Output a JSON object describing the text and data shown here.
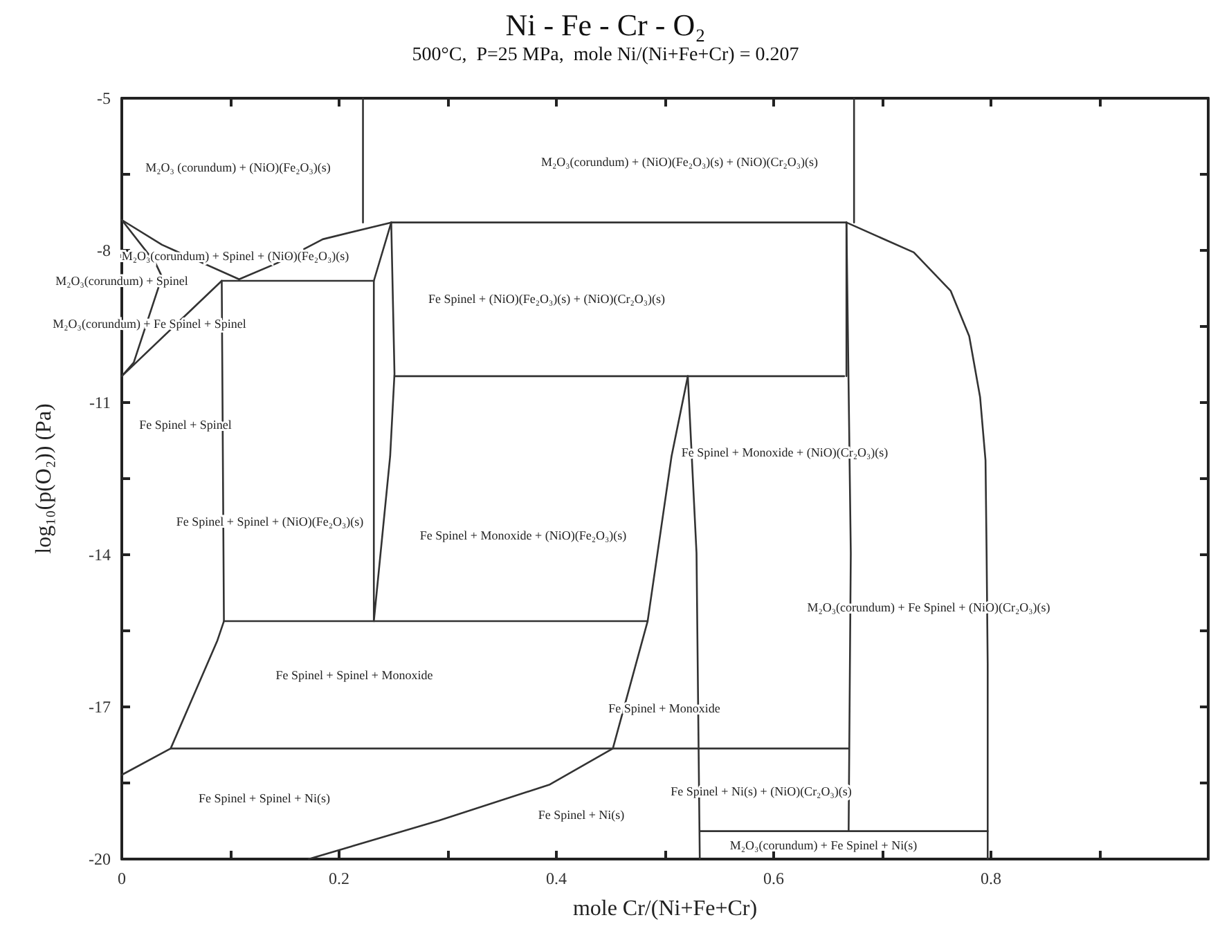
{
  "chart_data": {
    "type": "line",
    "title": "Ni - Fe - Cr - O₂",
    "subtitle": "500°C,  P=25 MPa,  mole Ni/(Ni+Fe+Cr) = 0.207",
    "xlabel": "mole Cr/(Ni+Fe+Cr)",
    "ylabel": "log₁₀(p(O₂)) (Pa)",
    "xlim": [
      0,
      1
    ],
    "xticks": [
      0,
      {
        "value": 0.1,
        "label": null
      },
      0.2,
      {
        "value": 0.3,
        "label": null
      },
      0.4,
      {
        "value": 0.5,
        "label": null
      },
      0.6,
      {
        "value": 0.7,
        "label": null
      },
      0.8,
      {
        "value": 0.9,
        "label": null
      },
      {
        "value": 1,
        "label": null
      }
    ],
    "ylim": [
      -20,
      -5
    ],
    "yticks": [
      -20,
      {
        "value": -18.5,
        "label": null
      },
      -17,
      {
        "value": -15.5,
        "label": null
      },
      -14,
      {
        "value": -12.5,
        "label": null
      },
      -11,
      {
        "value": -9.5,
        "label": null
      },
      -8,
      {
        "value": -6.5,
        "label": null
      },
      -5
    ],
    "grid": false,
    "marker": "none",
    "line_style": "solid",
    "series": [
      {
        "color": "#333333",
        "x": [
          0.222,
          0.222
        ],
        "values": [
          -5,
          -7.45
        ]
      },
      {
        "color": "#333333",
        "x": [
          0.674,
          0.674
        ],
        "values": [
          -5,
          -7.45
        ]
      },
      {
        "color": "#333333",
        "x": [
          0,
          0.037,
          0.108
        ],
        "values": [
          -7.4,
          -7.89,
          -8.57
        ]
      },
      {
        "color": "#333333",
        "x": [
          0,
          0.031,
          0.037,
          0.011,
          0
        ],
        "values": [
          -7.4,
          -8.25,
          -8.52,
          -10.21,
          -10.48
        ]
      },
      {
        "color": "#333333",
        "x": [
          0,
          0.092
        ],
        "values": [
          -10.48,
          -8.6
        ]
      },
      {
        "color": "#333333",
        "x": [
          0.092,
          0.232,
          0.248
        ],
        "values": [
          -8.6,
          -8.6,
          -7.45
        ]
      },
      {
        "color": "#333333",
        "x": [
          0.108,
          0.143,
          0.185,
          0.248,
          0.667,
          0.729,
          0.763,
          0.78,
          0.79,
          0.795,
          0.796,
          0.797,
          0.797
        ],
        "values": [
          -8.57,
          -8.25,
          -7.78,
          -7.45,
          -7.45,
          -8.04,
          -8.8,
          -9.69,
          -10.89,
          -12.14,
          -13.97,
          -16.15,
          -20
        ]
      },
      {
        "color": "#333333",
        "x": [
          0.092,
          0.094,
          0.088,
          0.045,
          0
        ],
        "values": [
          -8.6,
          -15.31,
          -15.69,
          -17.82,
          -18.34
        ]
      },
      {
        "color": "#333333",
        "x": [
          0.232,
          0.232,
          0.247,
          0.251,
          0.248
        ],
        "values": [
          -8.6,
          -15.31,
          -12.06,
          -10.43,
          -7.45
        ]
      },
      {
        "color": "#333333",
        "x": [
          0.251,
          0.665
        ],
        "values": [
          -10.48,
          -10.48
        ]
      },
      {
        "color": "#333333",
        "x": [
          0.094,
          0.484
        ],
        "values": [
          -15.31,
          -15.31
        ]
      },
      {
        "color": "#333333",
        "x": [
          0.045,
          0.669
        ],
        "values": [
          -17.82,
          -17.82
        ]
      },
      {
        "color": "#333333",
        "x": [
          0.521,
          0.506,
          0.484,
          0.452,
          0.394,
          0.292,
          0.172
        ],
        "values": [
          -10.48,
          -12.06,
          -15.31,
          -17.82,
          -18.53,
          -19.24,
          -20
        ]
      },
      {
        "color": "#333333",
        "x": [
          0.521,
          0.529,
          0.532
        ],
        "values": [
          -10.48,
          -13.97,
          -20
        ]
      },
      {
        "color": "#333333",
        "x": [
          0.667,
          0.667
        ],
        "values": [
          -7.45,
          -10.48
        ]
      },
      {
        "color": "#333333",
        "x": [
          0.667,
          0.671,
          0.669
        ],
        "values": [
          -7.45,
          -13.97,
          -19.45
        ]
      },
      {
        "color": "#333333",
        "x": [
          0.532,
          0.797
        ],
        "values": [
          -19.45,
          -19.45
        ]
      }
    ],
    "annotations": [
      "M₂O₃ (corundum) + (NiO)(Fe₂O₃)(s)",
      "M₂O₃(corundum) + (NiO)(Fe₂O₃)(s) + (NiO)(Cr₂O₃)(s)",
      "M₂O₃(corundum) + Spinel + (NiO)(Fe₂O₃)(s)",
      "M₂O₃(corundum) + Spinel",
      "M₂O₃(corundum) + Fe Spinel + Spinel",
      "Fe Spinel + Spinel",
      "Fe Spinel + (NiO)(Fe₂O₃)(s) + (NiO)(Cr₂O₃)(s)",
      "Fe Spinel + Monoxide + (NiO)(Cr₂O₃)(s)",
      "Fe Spinel + Spinel + (NiO)(Fe₂O₃)(s)",
      "Fe Spinel + Monoxide + (NiO)(Fe₂O₃)(s)",
      "M₂O₃(corundum) + Fe Spinel + (NiO)(Cr₂O₃)(s)",
      "Fe Spinel + Spinel + Monoxide",
      "Fe Spinel + Monoxide",
      "Fe Spinel + Spinel + Ni(s)",
      "Fe Spinel + Ni(s)",
      "Fe Spinel + Ni(s) + (NiO)(Cr₂O₃)(s)",
      "M₂O₃(corundum) + Fe Spinel + Ni(s)"
    ]
  }
}
